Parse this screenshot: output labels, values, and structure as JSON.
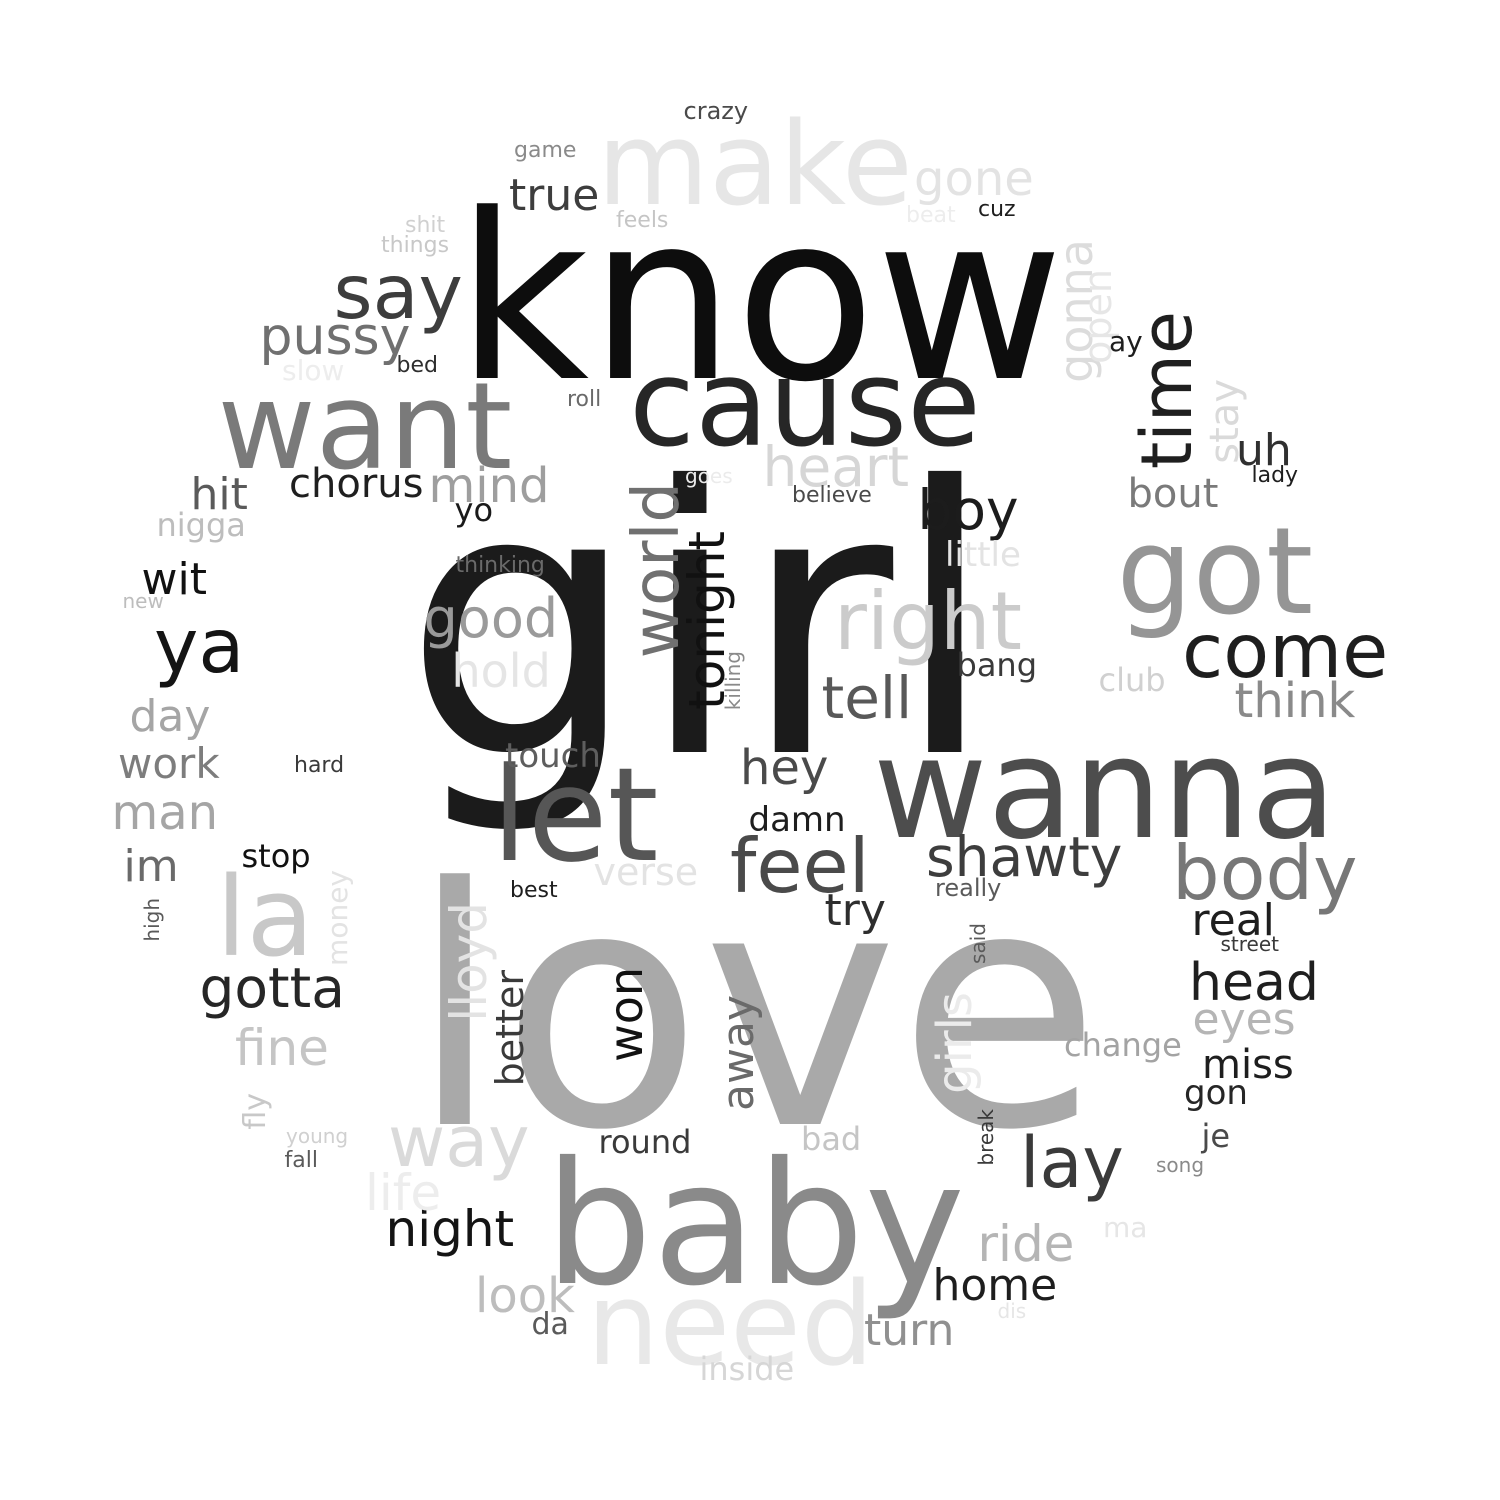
{
  "words": [
    {
      "text": "girl",
      "color": "#1b1b1b",
      "orient": "h"
    },
    {
      "text": "love",
      "color": "#a9a9a9",
      "orient": "h"
    },
    {
      "text": "know",
      "color": "#0d0d0d",
      "orient": "h"
    },
    {
      "text": "wanna",
      "color": "#4d4d4d",
      "orient": "h"
    },
    {
      "text": "baby",
      "color": "#8a8a8a",
      "orient": "h"
    },
    {
      "text": "cause",
      "color": "#262626",
      "orient": "h"
    },
    {
      "text": "want",
      "color": "#7a7a7a",
      "orient": "h"
    },
    {
      "text": "make",
      "color": "#e6e6e6",
      "orient": "h"
    },
    {
      "text": "need",
      "color": "#e8e8e8",
      "orient": "h"
    },
    {
      "text": "got",
      "color": "#959595",
      "orient": "h"
    },
    {
      "text": "let",
      "color": "#565656",
      "orient": "h"
    },
    {
      "text": "la",
      "color": "#c8c8c8",
      "orient": "h"
    },
    {
      "text": "right",
      "color": "#cbcbcb",
      "orient": "h"
    },
    {
      "text": "come",
      "color": "#1e1e1e",
      "orient": "h"
    },
    {
      "text": "body",
      "color": "#777777",
      "orient": "h"
    },
    {
      "text": "feel",
      "color": "#4a4a4a",
      "orient": "h"
    },
    {
      "text": "say",
      "color": "#3d3d3d",
      "orient": "h"
    },
    {
      "text": "world",
      "color": "#707070",
      "orient": "v"
    },
    {
      "text": "time",
      "color": "#1f1f1f",
      "orient": "v"
    },
    {
      "text": "tonight",
      "color": "#111111",
      "orient": "v"
    },
    {
      "text": "ya",
      "color": "#141414",
      "orient": "h"
    },
    {
      "text": "way",
      "color": "#dadada",
      "orient": "h"
    },
    {
      "text": "lay",
      "color": "#3a3a3a",
      "orient": "h"
    },
    {
      "text": "shawty",
      "color": "#3d3d3d",
      "orient": "h"
    },
    {
      "text": "heart",
      "color": "#d6d6d6",
      "orient": "h"
    },
    {
      "text": "tell",
      "color": "#585858",
      "orient": "h"
    },
    {
      "text": "gotta",
      "color": "#262626",
      "orient": "h"
    },
    {
      "text": "good",
      "color": "#9a9a9a",
      "orient": "h"
    },
    {
      "text": "pussy",
      "color": "#707070",
      "orient": "h"
    },
    {
      "text": "won",
      "color": "#121212",
      "orient": "v"
    },
    {
      "text": "head",
      "color": "#1f1f1f",
      "orient": "h"
    },
    {
      "text": "boy",
      "color": "#1c1c1c",
      "orient": "h"
    },
    {
      "text": "think",
      "color": "#8a8a8a",
      "orient": "h"
    },
    {
      "text": "fine",
      "color": "#c5c5c5",
      "orient": "h"
    },
    {
      "text": "night",
      "color": "#141414",
      "orient": "h"
    },
    {
      "text": "gone",
      "color": "#e3e3e3",
      "orient": "h"
    },
    {
      "text": "true",
      "color": "#3d3d3d",
      "orient": "h"
    },
    {
      "text": "hey",
      "color": "#4a4a4a",
      "orient": "h"
    },
    {
      "text": "hold",
      "color": "#e5e5e5",
      "orient": "h"
    },
    {
      "text": "man",
      "color": "#a5a5a5",
      "orient": "h"
    },
    {
      "text": "ride",
      "color": "#b5b5b5",
      "orient": "h"
    },
    {
      "text": "mind",
      "color": "#9e9e9e",
      "orient": "h"
    },
    {
      "text": "real",
      "color": "#1e1e1e",
      "orient": "h"
    },
    {
      "text": "eyes",
      "color": "#b5b5b5",
      "orient": "h"
    },
    {
      "text": "life",
      "color": "#ededed",
      "orient": "h"
    },
    {
      "text": "look",
      "color": "#bdbdbd",
      "orient": "h"
    },
    {
      "text": "home",
      "color": "#1e1e1e",
      "orient": "h"
    },
    {
      "text": "turn",
      "color": "#909090",
      "orient": "h"
    },
    {
      "text": "chorus",
      "color": "#1f1f1f",
      "orient": "h"
    },
    {
      "text": "hit",
      "color": "#5a5a5a",
      "orient": "h"
    },
    {
      "text": "day",
      "color": "#a5a5a5",
      "orient": "h"
    },
    {
      "text": "work",
      "color": "#7d7d7d",
      "orient": "h"
    },
    {
      "text": "wit",
      "color": "#111111",
      "orient": "h"
    },
    {
      "text": "im",
      "color": "#6a6a6a",
      "orient": "h"
    },
    {
      "text": "miss",
      "color": "#1e1e1e",
      "orient": "h"
    },
    {
      "text": "try",
      "color": "#2e2e2e",
      "orient": "h"
    },
    {
      "text": "uh",
      "color": "#303030",
      "orient": "h"
    },
    {
      "text": "bout",
      "color": "#7a7a7a",
      "orient": "h"
    },
    {
      "text": "gonna",
      "color": "#dcdcdc",
      "orient": "v"
    },
    {
      "text": "open",
      "color": "#e6e6e6",
      "orient": "v"
    },
    {
      "text": "stay",
      "color": "#dadada",
      "orient": "v"
    },
    {
      "text": "lloyd",
      "color": "#e3e3e3",
      "orient": "v"
    },
    {
      "text": "girls",
      "color": "#ebebeb",
      "orient": "v"
    },
    {
      "text": "away",
      "color": "#6a6a6a",
      "orient": "v"
    },
    {
      "text": "better",
      "color": "#3a3a3a",
      "orient": "v"
    },
    {
      "text": "touch",
      "color": "#5e5e5e",
      "orient": "h"
    },
    {
      "text": "verse",
      "color": "#e3e3e3",
      "orient": "h"
    },
    {
      "text": "little",
      "color": "#e3e3e3",
      "orient": "h"
    },
    {
      "text": "club",
      "color": "#d0d0d0",
      "orient": "h"
    },
    {
      "text": "change",
      "color": "#a3a3a3",
      "orient": "h"
    },
    {
      "text": "gon",
      "color": "#262626",
      "orient": "h"
    },
    {
      "text": "damn",
      "color": "#1e1e1e",
      "orient": "h"
    },
    {
      "text": "bang",
      "color": "#3a3a3a",
      "orient": "h"
    },
    {
      "text": "yo",
      "color": "#1a1a1a",
      "orient": "h"
    },
    {
      "text": "nigga",
      "color": "#bdbdbd",
      "orient": "h"
    },
    {
      "text": "stop",
      "color": "#111111",
      "orient": "h"
    },
    {
      "text": "round",
      "color": "#3a3a3a",
      "orient": "h"
    },
    {
      "text": "bad",
      "color": "#c5c5c5",
      "orient": "h"
    },
    {
      "text": "je",
      "color": "#4a4a4a",
      "orient": "h"
    },
    {
      "text": "inside",
      "color": "#d6d6d6",
      "orient": "h"
    },
    {
      "text": "da",
      "color": "#5a5a5a",
      "orient": "h"
    },
    {
      "text": "money",
      "color": "#e3e3e3",
      "orient": "v"
    },
    {
      "text": "fly",
      "color": "#c8c8c8",
      "orient": "v"
    },
    {
      "text": "ma",
      "color": "#e6e6e6",
      "orient": "h"
    },
    {
      "text": "ay",
      "color": "#1e1e1e",
      "orient": "h"
    },
    {
      "text": "crazy",
      "color": "#4a4a4a",
      "orient": "h"
    },
    {
      "text": "game",
      "color": "#8a8a8a",
      "orient": "h"
    },
    {
      "text": "cuz",
      "color": "#1e1e1e",
      "orient": "h"
    },
    {
      "text": "beat",
      "color": "#ededed",
      "orient": "h"
    },
    {
      "text": "feels",
      "color": "#c5c5c5",
      "orient": "h"
    },
    {
      "text": "shit",
      "color": "#d0d0d0",
      "orient": "h"
    },
    {
      "text": "things",
      "color": "#c8c8c8",
      "orient": "h"
    },
    {
      "text": "slow",
      "color": "#ededed",
      "orient": "h"
    },
    {
      "text": "bed",
      "color": "#2e2e2e",
      "orient": "h"
    },
    {
      "text": "roll",
      "color": "#6a6a6a",
      "orient": "h"
    },
    {
      "text": "goes",
      "color": "#ebebeb",
      "orient": "h"
    },
    {
      "text": "believe",
      "color": "#4a4a4a",
      "orient": "h"
    },
    {
      "text": "lady",
      "color": "#1e1e1e",
      "orient": "h"
    },
    {
      "text": "thinking",
      "color": "#6a6a6a",
      "orient": "h"
    },
    {
      "text": "new",
      "color": "#bdbdbd",
      "orient": "h"
    },
    {
      "text": "killing",
      "color": "#8a8a8a",
      "orient": "v"
    },
    {
      "text": "hard",
      "color": "#3a3a3a",
      "orient": "h"
    },
    {
      "text": "best",
      "color": "#1e1e1e",
      "orient": "h"
    },
    {
      "text": "really",
      "color": "#5a5a5a",
      "orient": "h"
    },
    {
      "text": "street",
      "color": "#3a3a3a",
      "orient": "h"
    },
    {
      "text": "said",
      "color": "#5a5a5a",
      "orient": "v"
    },
    {
      "text": "high",
      "color": "#5a5a5a",
      "orient": "v"
    },
    {
      "text": "young",
      "color": "#d0d0d0",
      "orient": "h"
    },
    {
      "text": "fall",
      "color": "#5a5a5a",
      "orient": "h"
    },
    {
      "text": "break",
      "color": "#3a3a3a",
      "orient": "v"
    },
    {
      "text": "song",
      "color": "#8a8a8a",
      "orient": "h"
    },
    {
      "text": "dis",
      "color": "#e6e6e6",
      "orient": "h"
    }
  ]
}
